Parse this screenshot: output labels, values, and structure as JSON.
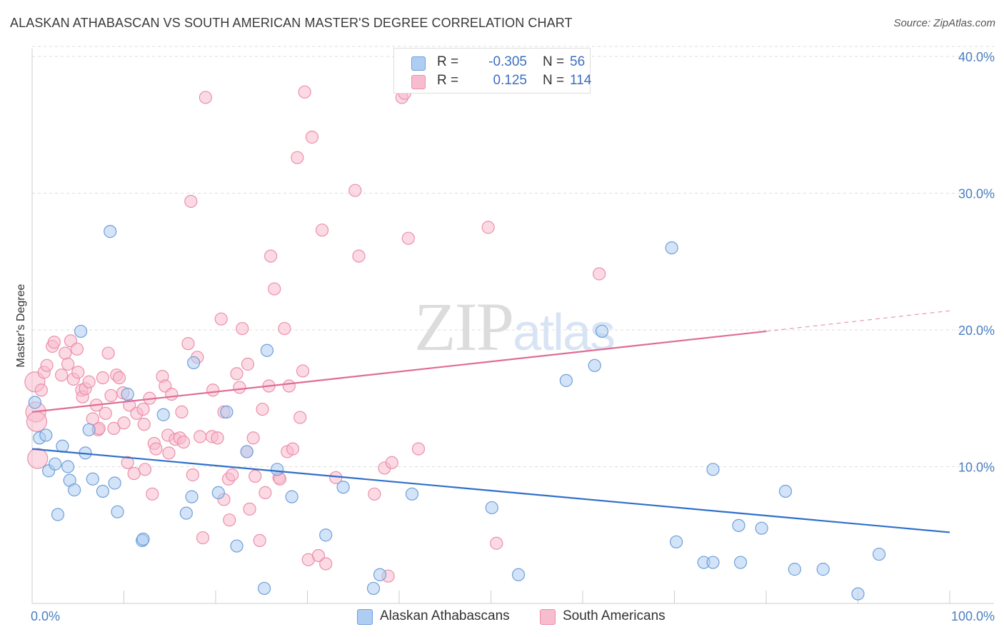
{
  "title": "ALASKAN ATHABASCAN VS SOUTH AMERICAN MASTER'S DEGREE CORRELATION CHART",
  "source": "Source: ZipAtlas.com",
  "watermark": "ZIPatlas",
  "legend": {
    "rows": [
      {
        "r_label": "R =",
        "r_value": "-0.305",
        "n_label": "N =",
        "n_value": "56"
      },
      {
        "r_label": "R =",
        "r_value": "0.125",
        "n_label": "N =",
        "n_value": "114"
      }
    ]
  },
  "bottom_legend": [
    "Alaskan Athabascans",
    "South Americans"
  ],
  "colors": {
    "blue_fill": "#aecdf2",
    "blue_stroke": "#6f9fd8",
    "blue_line": "#2f6fca",
    "pink_fill": "#f7bccd",
    "pink_stroke": "#ec8fab",
    "pink_line": "#e06c93",
    "axis_text": "#4a7fc1",
    "grid": "#dddddd"
  },
  "chart_data": {
    "type": "scatter",
    "title": "ALASKAN ATHABASCAN VS SOUTH AMERICAN MASTER'S DEGREE CORRELATION CHART",
    "xlabel": "",
    "ylabel": "Master's Degree",
    "xlim": [
      0,
      100
    ],
    "ylim": [
      0,
      41
    ],
    "x_tick_labels": [
      "0.0%",
      "100.0%"
    ],
    "y_ticks": [
      10,
      20,
      30,
      40
    ],
    "y_tick_labels": [
      "10.0%",
      "20.0%",
      "30.0%",
      "40.0%"
    ],
    "grid": true,
    "legend_position": "top-center",
    "series": [
      {
        "name": "Alaskan Athabascans",
        "trend": {
          "x": [
            0,
            100
          ],
          "y": [
            11.3,
            5.2
          ],
          "style": "solid"
        },
        "points": [
          [
            0.3,
            14.7
          ],
          [
            0.8,
            12.1
          ],
          [
            1.5,
            12.3
          ],
          [
            1.8,
            9.7
          ],
          [
            2.5,
            10.2
          ],
          [
            2.8,
            6.5
          ],
          [
            3.3,
            11.5
          ],
          [
            3.9,
            10.0
          ],
          [
            4.1,
            9.0
          ],
          [
            4.6,
            8.3
          ],
          [
            5.3,
            19.9
          ],
          [
            5.8,
            11.0
          ],
          [
            6.2,
            12.7
          ],
          [
            6.6,
            9.1
          ],
          [
            7.7,
            8.2
          ],
          [
            8.5,
            27.2
          ],
          [
            9.0,
            8.8
          ],
          [
            9.3,
            6.7
          ],
          [
            10.4,
            15.3
          ],
          [
            12.0,
            4.6
          ],
          [
            12.1,
            4.7
          ],
          [
            14.3,
            13.8
          ],
          [
            16.8,
            6.6
          ],
          [
            17.4,
            7.8
          ],
          [
            17.6,
            17.6
          ],
          [
            20.3,
            8.1
          ],
          [
            21.2,
            14.0
          ],
          [
            22.3,
            4.2
          ],
          [
            23.4,
            11.1
          ],
          [
            25.3,
            1.1
          ],
          [
            25.6,
            18.5
          ],
          [
            26.7,
            9.8
          ],
          [
            28.3,
            7.8
          ],
          [
            32.0,
            5.0
          ],
          [
            33.9,
            8.5
          ],
          [
            37.2,
            1.1
          ],
          [
            37.9,
            2.1
          ],
          [
            41.4,
            8.0
          ],
          [
            50.1,
            7.0
          ],
          [
            53.0,
            2.1
          ],
          [
            58.2,
            16.3
          ],
          [
            61.3,
            17.4
          ],
          [
            62.1,
            19.9
          ],
          [
            69.7,
            26.0
          ],
          [
            70.2,
            4.5
          ],
          [
            73.2,
            3.0
          ],
          [
            74.2,
            3.0
          ],
          [
            74.2,
            9.8
          ],
          [
            77.0,
            5.7
          ],
          [
            77.2,
            3.0
          ],
          [
            79.5,
            5.5
          ],
          [
            82.1,
            8.2
          ],
          [
            83.1,
            2.5
          ],
          [
            86.2,
            2.5
          ],
          [
            90.0,
            0.7
          ],
          [
            92.3,
            3.6
          ]
        ]
      },
      {
        "name": "South Americans",
        "trend": {
          "x": [
            0,
            80,
            100
          ],
          "y": [
            14.0,
            19.9,
            21.4
          ],
          "style": "solid-then-dashed"
        },
        "points": [
          [
            0.3,
            16.2
          ],
          [
            0.4,
            14.0
          ],
          [
            0.5,
            13.3
          ],
          [
            0.6,
            10.6
          ],
          [
            1.0,
            15.6
          ],
          [
            1.3,
            16.9
          ],
          [
            1.6,
            17.4
          ],
          [
            2.2,
            18.8
          ],
          [
            2.4,
            19.1
          ],
          [
            3.2,
            16.7
          ],
          [
            3.6,
            18.3
          ],
          [
            3.9,
            17.5
          ],
          [
            4.2,
            19.2
          ],
          [
            4.5,
            16.4
          ],
          [
            4.9,
            18.6
          ],
          [
            5.0,
            16.9
          ],
          [
            5.4,
            15.6
          ],
          [
            5.5,
            15.1
          ],
          [
            5.8,
            15.7
          ],
          [
            6.2,
            16.2
          ],
          [
            6.6,
            13.5
          ],
          [
            7.0,
            14.5
          ],
          [
            7.2,
            12.7
          ],
          [
            7.3,
            12.8
          ],
          [
            7.7,
            16.5
          ],
          [
            8.0,
            13.9
          ],
          [
            8.3,
            18.3
          ],
          [
            8.6,
            15.2
          ],
          [
            8.9,
            12.8
          ],
          [
            9.2,
            16.7
          ],
          [
            9.5,
            16.5
          ],
          [
            9.9,
            15.4
          ],
          [
            10.0,
            13.2
          ],
          [
            10.4,
            10.3
          ],
          [
            10.6,
            14.5
          ],
          [
            11.1,
            9.5
          ],
          [
            11.4,
            13.9
          ],
          [
            12.1,
            14.2
          ],
          [
            12.2,
            13.1
          ],
          [
            12.3,
            9.8
          ],
          [
            12.8,
            15.0
          ],
          [
            13.1,
            8.0
          ],
          [
            13.3,
            11.7
          ],
          [
            13.5,
            11.3
          ],
          [
            14.2,
            16.6
          ],
          [
            14.5,
            15.9
          ],
          [
            14.8,
            12.3
          ],
          [
            14.9,
            11.0
          ],
          [
            15.2,
            15.3
          ],
          [
            15.6,
            12.0
          ],
          [
            16.1,
            12.1
          ],
          [
            16.3,
            14.0
          ],
          [
            16.5,
            11.8
          ],
          [
            17.0,
            19.0
          ],
          [
            17.3,
            29.4
          ],
          [
            17.5,
            9.4
          ],
          [
            18.0,
            18.0
          ],
          [
            18.3,
            12.2
          ],
          [
            18.6,
            4.8
          ],
          [
            18.9,
            37.0
          ],
          [
            19.6,
            12.2
          ],
          [
            19.7,
            15.6
          ],
          [
            20.2,
            12.1
          ],
          [
            20.6,
            20.8
          ],
          [
            20.9,
            14.0
          ],
          [
            20.9,
            7.6
          ],
          [
            21.4,
            9.1
          ],
          [
            21.5,
            6.1
          ],
          [
            21.8,
            9.4
          ],
          [
            22.3,
            16.8
          ],
          [
            22.6,
            15.8
          ],
          [
            22.9,
            20.1
          ],
          [
            23.4,
            11.1
          ],
          [
            23.5,
            17.5
          ],
          [
            23.7,
            6.9
          ],
          [
            24.1,
            12.1
          ],
          [
            24.3,
            9.3
          ],
          [
            24.8,
            4.6
          ],
          [
            25.1,
            14.2
          ],
          [
            25.4,
            8.1
          ],
          [
            25.8,
            15.9
          ],
          [
            26.0,
            25.4
          ],
          [
            26.4,
            23.0
          ],
          [
            26.9,
            9.2
          ],
          [
            27.0,
            9.1
          ],
          [
            27.5,
            20.1
          ],
          [
            27.8,
            11.1
          ],
          [
            28.0,
            15.9
          ],
          [
            28.4,
            11.3
          ],
          [
            28.9,
            32.6
          ],
          [
            29.2,
            13.6
          ],
          [
            29.5,
            17.0
          ],
          [
            29.7,
            37.4
          ],
          [
            30.1,
            3.2
          ],
          [
            30.5,
            34.1
          ],
          [
            31.2,
            3.5
          ],
          [
            32.0,
            2.9
          ],
          [
            31.6,
            27.3
          ],
          [
            33.1,
            9.2
          ],
          [
            35.2,
            30.2
          ],
          [
            35.6,
            25.4
          ],
          [
            37.3,
            8.0
          ],
          [
            38.4,
            9.9
          ],
          [
            38.8,
            2.0
          ],
          [
            39.2,
            10.3
          ],
          [
            40.3,
            37.0
          ],
          [
            40.6,
            37.3
          ],
          [
            41.0,
            26.7
          ],
          [
            42.1,
            11.3
          ],
          [
            49.7,
            27.5
          ],
          [
            50.6,
            4.4
          ],
          [
            61.8,
            24.1
          ]
        ]
      }
    ]
  }
}
